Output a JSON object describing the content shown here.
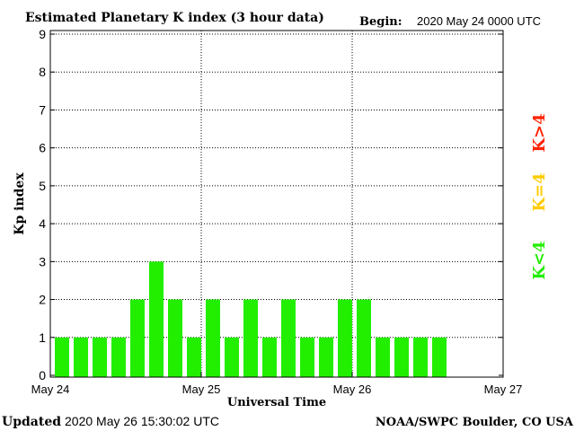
{
  "header": {
    "title": "Estimated Planetary K index (3 hour data)",
    "begin_label": "Begin:",
    "begin_value": "2020 May 24 0000 UTC"
  },
  "footer": {
    "updated_label": "Updated",
    "updated_value": "2020 May 26 15:30:02 UTC",
    "credit": "NOAA/SWPC Boulder, CO USA"
  },
  "legend": {
    "high": "K>4",
    "mid": "K=4",
    "low": "K<4",
    "colors": {
      "high": "#ff2200",
      "mid": "#ffcc00",
      "low": "#22ee00"
    }
  },
  "chart_data": {
    "type": "bar",
    "title": "Estimated Planetary K index (3 hour data)",
    "xlabel": "Universal Time",
    "ylabel": "Kp index",
    "ylim": [
      0,
      9
    ],
    "yticks": [
      "0",
      "1",
      "2",
      "3",
      "4",
      "5",
      "6",
      "7",
      "8",
      "9"
    ],
    "xticks": [
      "May 24",
      "May 25",
      "May 26",
      "May 27"
    ],
    "interval_hours": 3,
    "values": [
      1,
      1,
      1,
      1,
      2,
      3,
      2,
      1,
      2,
      1,
      2,
      1,
      2,
      1,
      1,
      2,
      2,
      1,
      1,
      1,
      1
    ],
    "grid": true,
    "bar_color": "#22ee00"
  }
}
